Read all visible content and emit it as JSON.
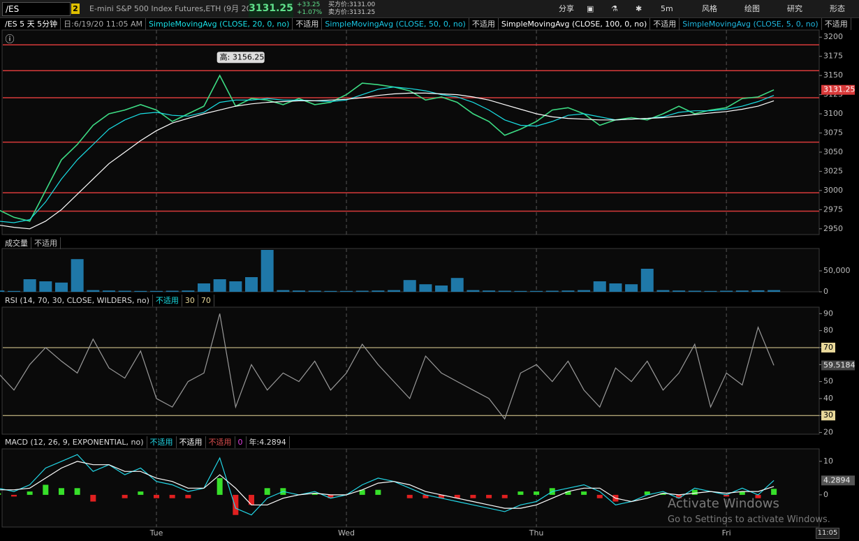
{
  "toolbar": {
    "symbol": "/ES",
    "link": "2",
    "description": "E-mini S&P 500 Index Futures,ETH (9月 20)",
    "last": "3131.25",
    "change": "+33.25",
    "change_pct": "+1.07%",
    "bid": "买方价:3131.00",
    "ask": "卖方价:3131.25",
    "buttons": [
      "分享",
      "5m",
      "风格",
      "绘图",
      "研究",
      "形态"
    ]
  },
  "studies_bar": [
    "/ES 5 天 5分钟",
    "日:6/19/20 11:05 AM",
    "SimpleMovingAvg (CLOSE, 20, 0, no)",
    "不适用",
    "SimpleMovingAvg (CLOSE, 50, 0, no)",
    "不适用",
    "SimpleMovingAvg (CLOSE, 100, 0, no)",
    "不适用",
    "SimpleMovingAvg (CLOSE, 5, 0, no)",
    "不适用"
  ],
  "chart_data": [
    {
      "type": "line",
      "categories": [
        null,
        null,
        null,
        null,
        null,
        null,
        null,
        null,
        null,
        null,
        "Tue",
        null,
        null,
        null,
        null,
        null,
        null,
        null,
        null,
        null,
        null,
        null,
        "Wed",
        null,
        null,
        null,
        null,
        null,
        null,
        null,
        null,
        null,
        null,
        null,
        "Thu",
        null,
        null,
        null,
        null,
        null,
        null,
        null,
        null,
        null,
        null,
        null,
        "Fri",
        null,
        null,
        null,
        null,
        null
      ],
      "ylim": [
        2942.5,
        3207.5
      ],
      "yticks": [
        2950,
        2975,
        3000,
        3025,
        3050,
        3075,
        3100,
        3125,
        3150,
        3175,
        3200
      ],
      "annotation": "高: 3156.25",
      "levels": [
        3190,
        3156.25,
        3121,
        3063,
        2997,
        2973
      ],
      "level_color": "#d83a3a",
      "series": [
        {
          "color": "#3ddc84",
          "values": [
            2975,
            2965,
            2960,
            3000,
            3040,
            3060,
            3085,
            3100,
            3105,
            3112,
            3105,
            3090,
            3100,
            3110,
            3150,
            3110,
            3120,
            3118,
            3112,
            3120,
            3112,
            3115,
            3125,
            3140,
            3138,
            3135,
            3130,
            3118,
            3122,
            3115,
            3100,
            3090,
            3072,
            3080,
            3090,
            3105,
            3108,
            3100,
            3085,
            3092,
            3095,
            3092,
            3100,
            3110,
            3100,
            3105,
            3108,
            3120,
            3122,
            3131.25,
            null,
            null
          ]
        },
        {
          "color": "#19e0e6",
          "values": [
            2960,
            2958,
            2962,
            2985,
            3015,
            3040,
            3060,
            3080,
            3092,
            3100,
            3102,
            3098,
            3097,
            3102,
            3115,
            3118,
            3118,
            3120,
            3118,
            3118,
            3117,
            3116,
            3118,
            3125,
            3132,
            3135,
            3133,
            3130,
            3125,
            3122,
            3115,
            3105,
            3092,
            3085,
            3084,
            3090,
            3098,
            3100,
            3096,
            3092,
            3093,
            3094,
            3096,
            3102,
            3104,
            3104,
            3106,
            3110,
            3116,
            3124,
            null,
            null
          ]
        },
        {
          "color": "#ffffff",
          "values": [
            2955,
            2952,
            2950,
            2960,
            2975,
            2995,
            3015,
            3035,
            3050,
            3065,
            3078,
            3088,
            3094,
            3100,
            3105,
            3110,
            3113,
            3115,
            3116,
            3117,
            3117,
            3118,
            3119,
            3121,
            3124,
            3126,
            3127,
            3127,
            3126,
            3125,
            3122,
            3118,
            3112,
            3106,
            3100,
            3096,
            3094,
            3093,
            3092,
            3092,
            3093,
            3094,
            3095,
            3097,
            3099,
            3101,
            3103,
            3106,
            3110,
            3117,
            null,
            null
          ]
        }
      ]
    },
    {
      "type": "bar",
      "header": [
        "成交量",
        "不适用"
      ],
      "ylim": [
        0,
        100000
      ],
      "yticks": [
        0,
        {
          "value": 50000,
          "label": "50,000"
        }
      ],
      "color": "#1f78a8",
      "values": [
        3000,
        2000,
        30000,
        25000,
        22000,
        78000,
        4000,
        3000,
        2500,
        2000,
        2000,
        2500,
        3000,
        20000,
        30000,
        25000,
        35000,
        100000,
        4000,
        3000,
        2500,
        2000,
        2000,
        2500,
        3000,
        4000,
        28000,
        18000,
        15000,
        33000,
        4000,
        3000,
        2500,
        2000,
        2000,
        2500,
        3000,
        4000,
        25000,
        20000,
        18000,
        55000,
        4000,
        3000,
        2500,
        2000,
        2500,
        3000,
        3500,
        4000,
        null,
        null
      ]
    },
    {
      "type": "line",
      "header": [
        "RSI (14, 70, 30, CLOSE, WILDERS, no)",
        "不适用",
        "30",
        "70"
      ],
      "ylim": [
        19,
        93
      ],
      "yticks": [
        20,
        30,
        40,
        50,
        60,
        70,
        80,
        90
      ],
      "levels": [
        70,
        30
      ],
      "level_color": "#e8d89a",
      "series": [
        {
          "color": "#9a9a9a",
          "values": [
            55,
            45,
            60,
            70,
            62,
            55,
            75,
            58,
            52,
            68,
            40,
            35,
            50,
            55,
            90,
            35,
            60,
            45,
            55,
            50,
            62,
            45,
            55,
            72,
            60,
            50,
            40,
            65,
            55,
            50,
            45,
            40,
            28,
            55,
            60,
            50,
            62,
            45,
            35,
            58,
            50,
            62,
            45,
            55,
            72,
            35,
            55,
            48,
            82,
            59.5184,
            null,
            null
          ]
        }
      ]
    },
    {
      "type": "line",
      "header": [
        "MACD (12, 26, 9, EXPONENTIAL, no)",
        "不适用",
        "不适用",
        "不适用",
        "0",
        "年:4.2894"
      ],
      "ylim": [
        -9.6,
        13.3
      ],
      "yticks": [
        0,
        10
      ],
      "series": [
        {
          "kind": "histogram",
          "pos_color": "#37e02a",
          "neg_color": "#e02020",
          "values": [
            0.5,
            -0.5,
            1,
            3,
            2,
            2,
            -2,
            0,
            -1,
            1,
            -1,
            -1,
            -1,
            0,
            5,
            -6,
            -3,
            2,
            2,
            0,
            0.5,
            -1,
            0,
            1.5,
            1.5,
            0,
            -1,
            -1,
            -1,
            -1,
            -1,
            -1,
            -1,
            1,
            1,
            2,
            1,
            1,
            -1,
            -2,
            0,
            1,
            0.5,
            -1,
            1.5,
            0,
            -0.5,
            1,
            -1,
            1.7894,
            null,
            null
          ]
        },
        {
          "color": "#22d8e8",
          "values": [
            2,
            1,
            3,
            8,
            10,
            12,
            7,
            9,
            6,
            8,
            4,
            3,
            1,
            2,
            11,
            -4,
            -6,
            -1,
            1,
            0,
            1,
            -1,
            0,
            3,
            5,
            4,
            2,
            0,
            -1,
            -2,
            -3,
            -4,
            -5,
            -3,
            -2,
            1,
            2,
            3,
            1,
            -3,
            -2,
            0,
            1,
            -1,
            2,
            1,
            0,
            2,
            0,
            4.2894,
            null,
            null
          ]
        },
        {
          "color": "#ffffff",
          "values": [
            1.5,
            1.5,
            2,
            5,
            8,
            10,
            9,
            9,
            7,
            7,
            5,
            4,
            2,
            2,
            6,
            2,
            -3,
            -3,
            -1,
            0,
            0.5,
            0,
            0,
            1.5,
            3.5,
            4,
            3,
            1,
            0,
            -1,
            -2,
            -3,
            -4,
            -4,
            -3,
            -1,
            1,
            2,
            2,
            -1,
            -2,
            -1,
            0.5,
            0,
            0.5,
            1,
            0.5,
            1,
            1,
            2.5,
            null,
            null
          ]
        }
      ]
    }
  ],
  "watermark": {
    "title": "Activate Windows",
    "subtitle": "Go to Settings to activate Windows."
  },
  "clock": "11:05"
}
